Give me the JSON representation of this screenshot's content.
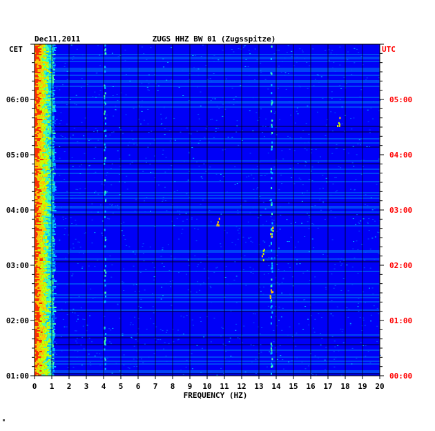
{
  "chart_data": {
    "type": "heatmap",
    "title": "ZUGS HHZ BW 01 (Zugsspitze)",
    "date": "Dec11,2011",
    "xlabel": "FREQUENCY (HZ)",
    "xlim": [
      0,
      20
    ],
    "x_ticks": [
      "0",
      "1",
      "2",
      "3",
      "4",
      "5",
      "6",
      "7",
      "8",
      "9",
      "10",
      "11",
      "12",
      "13",
      "14",
      "15",
      "16",
      "17",
      "18",
      "19",
      "20"
    ],
    "left_axis_label": "CET",
    "right_axis_label": "UTC",
    "left_ticks": [
      "01:00",
      "02:00",
      "03:00",
      "04:00",
      "05:00",
      "06:00"
    ],
    "right_ticks": [
      "00:00",
      "01:00",
      "02:00",
      "03:00",
      "04:00",
      "05:00"
    ],
    "time_range_utc_hours": [
      0,
      6
    ],
    "colormap": [
      "#00008b",
      "#0000ff",
      "#0050ff",
      "#00bfff",
      "#40ffb0",
      "#c8ff00",
      "#ffc800",
      "#ff3000"
    ],
    "background_color": "#0000c8",
    "right_label_color": "#ff0000",
    "grid": true
  }
}
